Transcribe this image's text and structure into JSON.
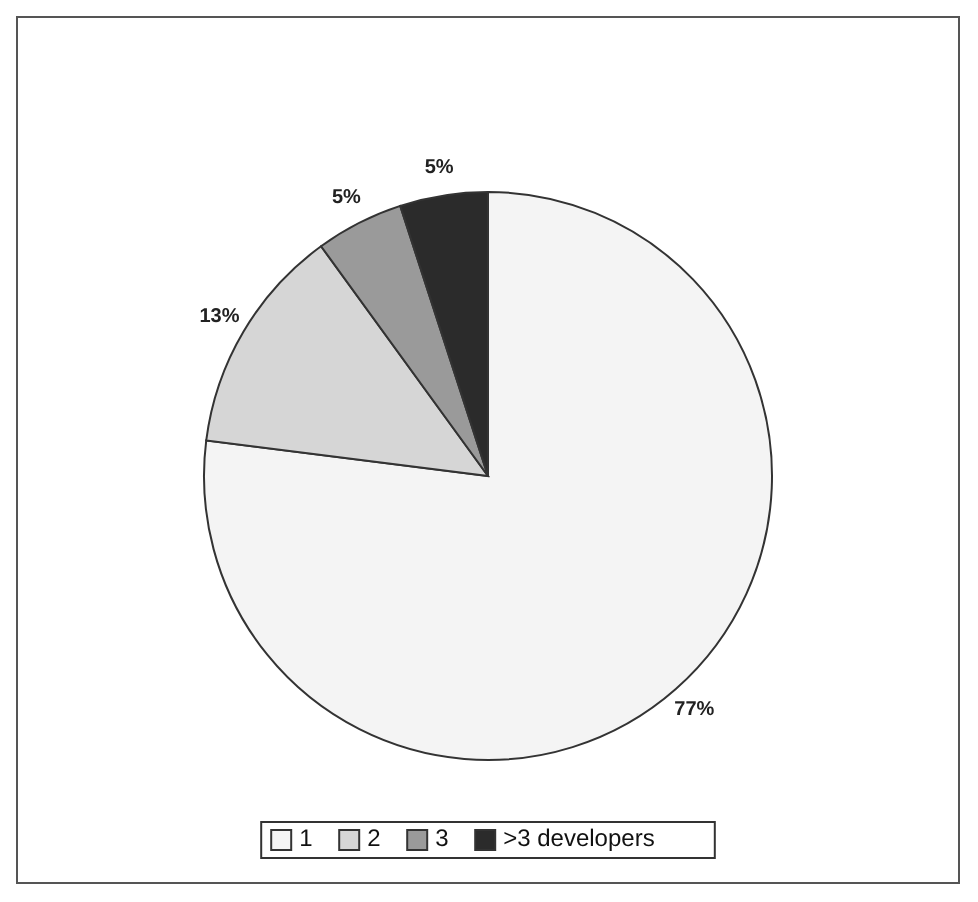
{
  "chart_data": {
    "type": "pie",
    "categories": [
      "1",
      "2",
      "3",
      ">3 developers"
    ],
    "values": [
      77,
      13,
      5,
      5
    ],
    "colors": [
      "#f4f4f4",
      "#d6d6d6",
      "#9a9a9a",
      "#2b2b2b"
    ],
    "value_labels": [
      "77%",
      "13%",
      "5%",
      "5%"
    ],
    "legend": "bottom"
  }
}
